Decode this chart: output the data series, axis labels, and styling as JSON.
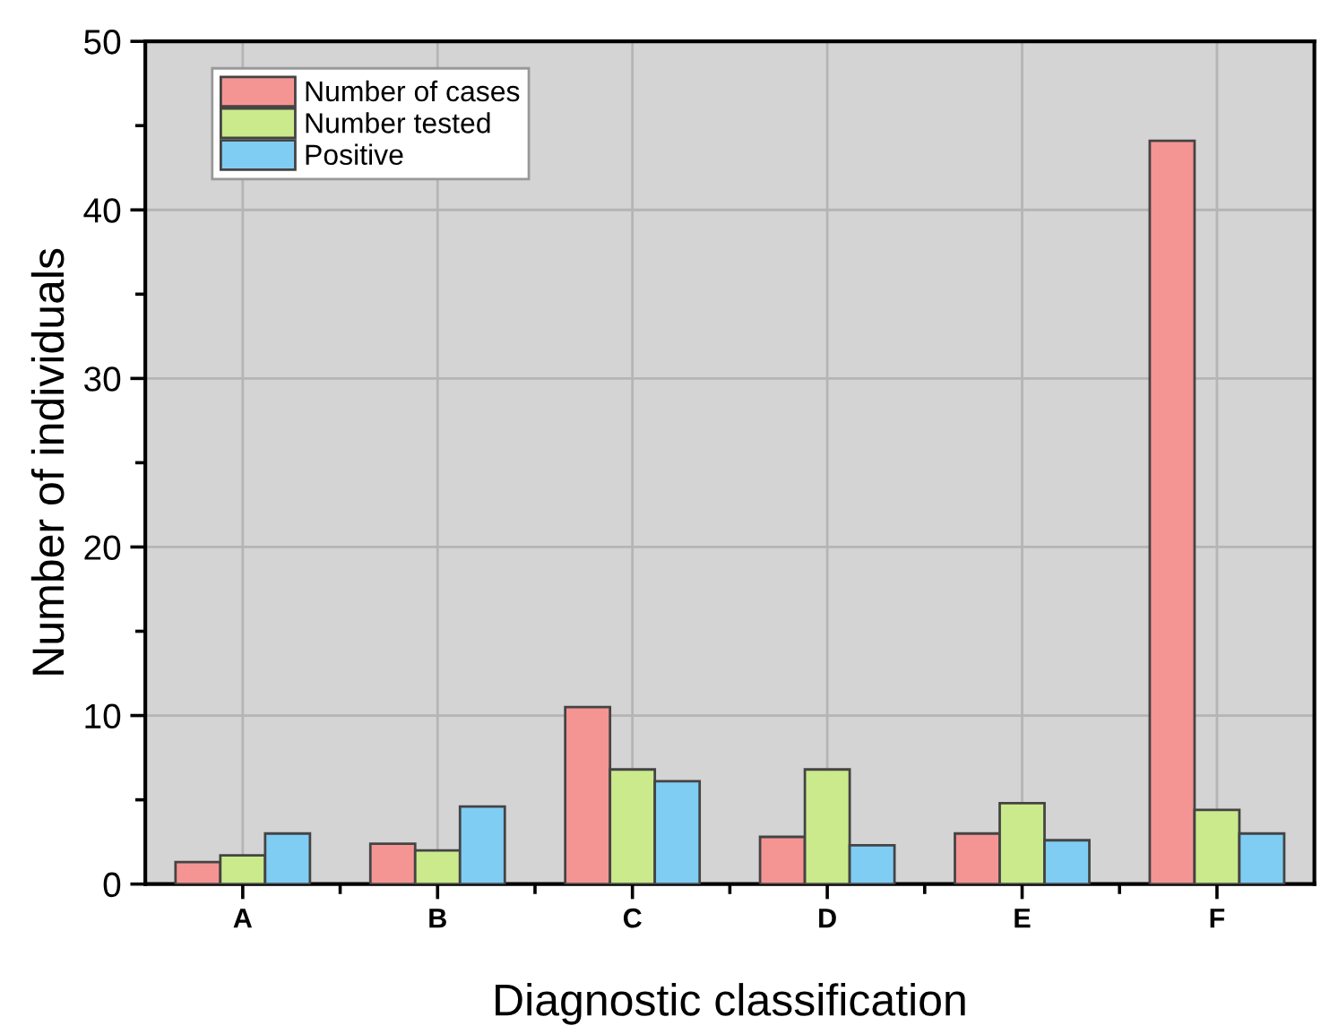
{
  "chart_data": {
    "type": "bar",
    "xlabel": "Diagnostic classification",
    "ylabel": "Number of individuals",
    "categories": [
      "A",
      "B",
      "C",
      "D",
      "E",
      "F"
    ],
    "series": [
      {
        "name": "Number of cases",
        "color": "#f59593",
        "values": [
          1.3,
          2.4,
          10.5,
          2.8,
          3.0,
          44.1
        ]
      },
      {
        "name": "Number tested",
        "color": "#cbea8c",
        "values": [
          1.7,
          2.0,
          6.8,
          6.8,
          4.8,
          4.4
        ]
      },
      {
        "name": "Positive",
        "color": "#80cdf4",
        "values": [
          3.0,
          4.6,
          6.1,
          2.3,
          2.6,
          3.0
        ]
      }
    ],
    "ylim": [
      0,
      50
    ],
    "yticks": [
      0,
      10,
      20,
      30,
      40,
      50
    ],
    "grid": true,
    "legend": "top left"
  }
}
